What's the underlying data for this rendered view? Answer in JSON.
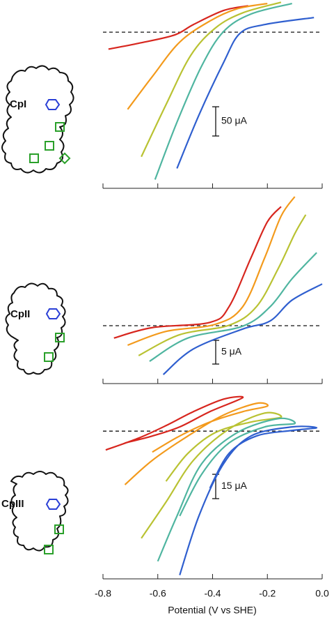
{
  "chart_data": [
    {
      "type": "line",
      "label": "CpI",
      "scale_bar": 50,
      "scale_bar_label": "50 μA",
      "xlim": [
        -0.8,
        0.0
      ],
      "ylim": [
        -267,
        55
      ],
      "series": [
        {
          "color": "#d7261e",
          "x": [
            -0.78,
            -0.67,
            -0.54,
            -0.47,
            -0.36,
            -0.27
          ],
          "values": [
            -29,
            -19,
            -5,
            13,
            37,
            45
          ]
        },
        {
          "color": "#f39a1c",
          "x": [
            -0.71,
            -0.62,
            -0.52,
            -0.41,
            -0.31,
            -0.2
          ],
          "values": [
            -132,
            -76,
            -17,
            19,
            40,
            49
          ]
        },
        {
          "color": "#b9c232",
          "x": [
            -0.66,
            -0.57,
            -0.48,
            -0.39,
            -0.29,
            -0.15
          ],
          "values": [
            -213,
            -124,
            -40,
            7,
            33,
            51
          ]
        },
        {
          "color": "#4fb5a0",
          "x": [
            -0.61,
            -0.53,
            -0.44,
            -0.36,
            -0.26,
            -0.11
          ],
          "values": [
            -252,
            -154,
            -58,
            1,
            31,
            49
          ]
        },
        {
          "color": "#2f5fcf",
          "x": [
            -0.53,
            -0.45,
            -0.36,
            -0.3,
            -0.21,
            -0.03
          ],
          "values": [
            -233,
            -142,
            -52,
            -2,
            13,
            25
          ]
        }
      ]
    },
    {
      "type": "line",
      "label": "CpII",
      "scale_bar": 5,
      "scale_bar_label": "5 μA",
      "xlim": [
        -0.8,
        0.0
      ],
      "ylim": [
        -12.2,
        27.5
      ],
      "series": [
        {
          "color": "#d7261e",
          "x": [
            -0.76,
            -0.62,
            -0.41,
            -0.34,
            -0.26,
            -0.2,
            -0.15
          ],
          "values": [
            -2.6,
            -0.4,
            0.7,
            4.0,
            14.3,
            21.9,
            25.1
          ]
        },
        {
          "color": "#f39a1c",
          "x": [
            -0.71,
            -0.57,
            -0.39,
            -0.29,
            -0.21,
            -0.15,
            -0.1
          ],
          "values": [
            -4.1,
            -1.2,
            0.3,
            4.0,
            14.3,
            23.1,
            27.2
          ]
        },
        {
          "color": "#b9c232",
          "x": [
            -0.67,
            -0.52,
            -0.34,
            -0.24,
            -0.16,
            -0.1,
            -0.06
          ],
          "values": [
            -6.3,
            -1.9,
            0.1,
            4.0,
            12.1,
            19.4,
            23.4
          ]
        },
        {
          "color": "#4fb5a0",
          "x": [
            -0.63,
            -0.49,
            -0.29,
            -0.19,
            -0.11,
            -0.02
          ],
          "values": [
            -7.5,
            -2.6,
            -0.1,
            4.0,
            9.9,
            15.4
          ]
        },
        {
          "color": "#2f5fcf",
          "x": [
            -0.58,
            -0.47,
            -0.29,
            -0.19,
            -0.11,
            0.0
          ],
          "values": [
            -10.3,
            -4.9,
            -0.7,
            1.0,
            5.4,
            8.8
          ]
        }
      ]
    },
    {
      "type": "line",
      "label": "CpIII",
      "scale_bar": 15,
      "scale_bar_label": "15 μA",
      "xlim": [
        -0.8,
        0.0
      ],
      "ylim": [
        -91,
        25
      ],
      "xlabel": "Potential (V vs SHE)",
      "xticks": [
        -0.8,
        -0.6,
        -0.4,
        -0.2,
        {
          "value": 0,
          "label": "0.0"
        }
      ],
      "series": [
        {
          "color": "#d7261e",
          "x": [
            -0.79,
            -0.67,
            -0.57,
            -0.47,
            -0.36,
            -0.29,
            -0.41,
            -0.52,
            -0.62,
            -0.72
          ],
          "values": [
            -11.6,
            -4.3,
            3.4,
            12.0,
            19.7,
            20.6,
            12.0,
            2.6,
            -3.0,
            -7.3
          ]
        },
        {
          "color": "#f39a1c",
          "x": [
            -0.72,
            -0.62,
            -0.49,
            -0.36,
            -0.24,
            -0.2,
            -0.29,
            -0.41,
            -0.52,
            -0.62
          ],
          "values": [
            -33.0,
            -18.0,
            -3.0,
            9.9,
            17.1,
            15.4,
            12.0,
            5.6,
            -3.0,
            -12.9
          ]
        },
        {
          "color": "#b9c232",
          "x": [
            -0.66,
            -0.57,
            -0.47,
            -0.34,
            -0.21,
            -0.15,
            -0.26,
            -0.39,
            -0.49,
            -0.57
          ],
          "values": [
            -66.0,
            -43.7,
            -18.0,
            1.3,
            11.1,
            8.6,
            5.6,
            -0.9,
            -13.7,
            -30.9
          ]
        },
        {
          "color": "#4fb5a0",
          "x": [
            -0.6,
            -0.53,
            -0.44,
            -0.31,
            -0.16,
            -0.1,
            -0.21,
            -0.34,
            -0.44,
            -0.52
          ],
          "values": [
            -80.2,
            -52.3,
            -20.1,
            -0.9,
            7.7,
            4.7,
            2.6,
            -7.3,
            -26.6,
            -52.3
          ]
        },
        {
          "color": "#2f5fcf",
          "x": [
            -0.52,
            -0.45,
            -0.36,
            -0.26,
            -0.11,
            -0.02,
            -0.11,
            -0.24,
            -0.34,
            -0.41
          ],
          "values": [
            -88.7,
            -52.3,
            -20.1,
            -3.0,
            2.6,
            2.1,
            0.4,
            -3.0,
            -13.7,
            -35.1
          ]
        }
      ]
    }
  ]
}
